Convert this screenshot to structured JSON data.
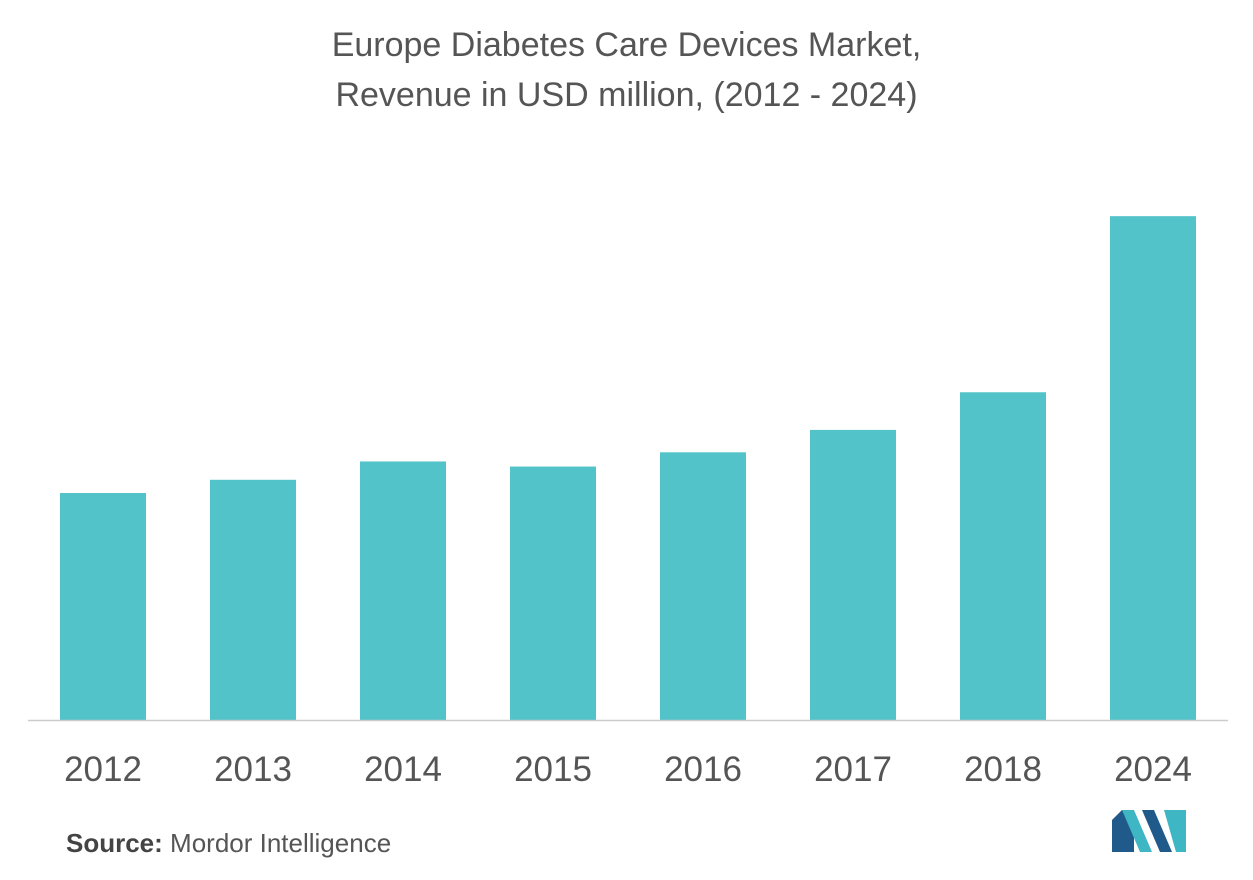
{
  "chart_data": {
    "type": "bar",
    "title_line1": "Europe Diabetes Care Devices Market,",
    "title_line2": "Revenue in USD million, (2012 - 2024)",
    "categories": [
      "2012",
      "2013",
      "2014",
      "2015",
      "2016",
      "2017",
      "2018",
      "2024"
    ],
    "series": [
      {
        "values": [
          223,
          236,
          254,
          249,
          263,
          285,
          322,
          495
        ]
      }
    ],
    "ylim": [
      0,
      560
    ],
    "xlabel": "",
    "ylabel": "",
    "grid": false,
    "bar_color": "#52c3c9",
    "axis_color": "#cccccc"
  },
  "footer": {
    "source_label": "Source:",
    "source_value": " Mordor Intelligence"
  },
  "logo": {
    "icon": "mordor-intelligence-logo-icon",
    "colors": [
      "#1f5a8a",
      "#3fb6c4"
    ]
  }
}
